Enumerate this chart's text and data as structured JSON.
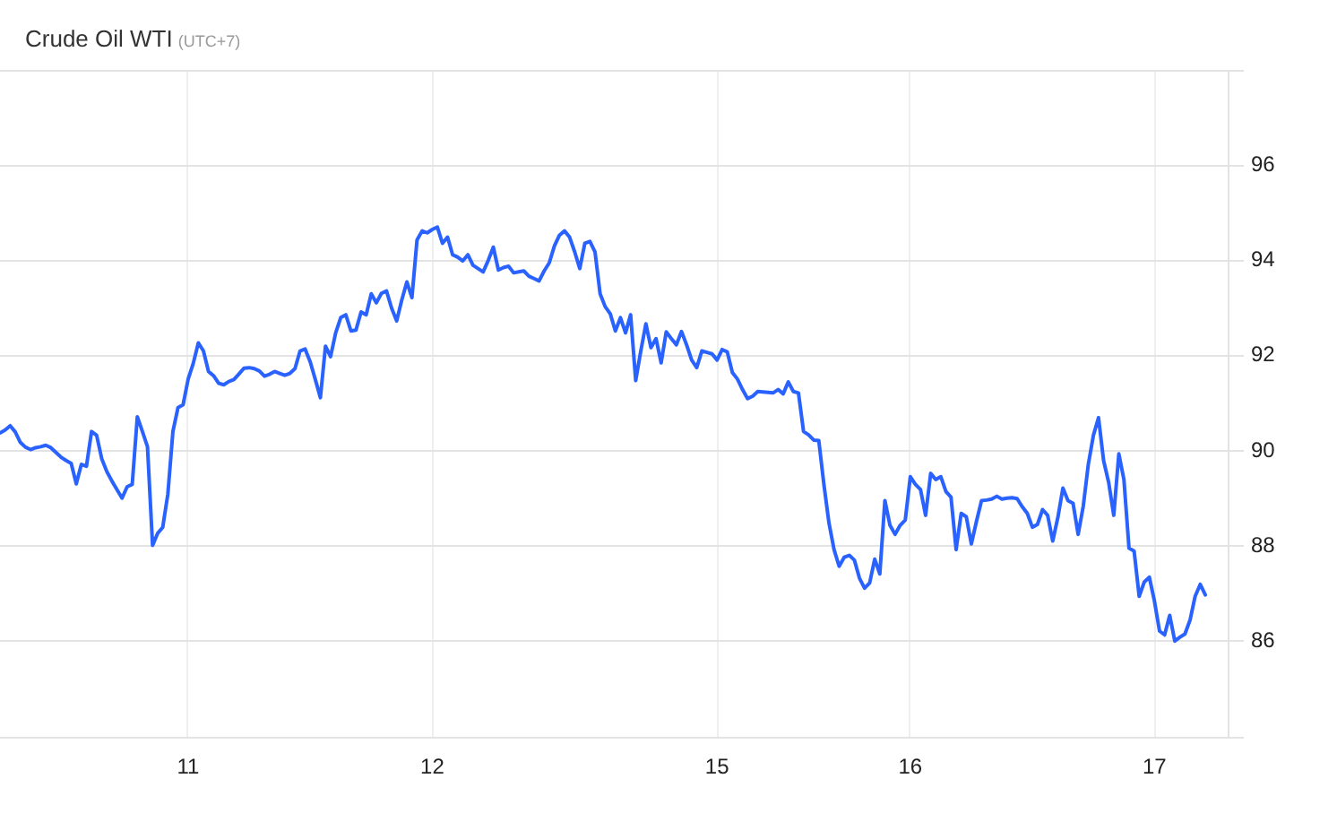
{
  "chart_data": {
    "type": "line",
    "title": "Crude Oil WTI",
    "subtitle": "(UTC+7)",
    "categories": [
      null,
      null,
      null,
      null,
      null,
      null,
      null,
      null,
      null,
      null,
      null,
      null,
      null,
      null,
      null,
      null,
      null,
      null,
      null,
      null,
      null,
      null,
      null,
      null,
      null,
      null,
      null,
      null,
      null,
      null,
      null,
      null,
      null,
      null,
      null,
      null,
      null,
      "11",
      null,
      null,
      null,
      null,
      null,
      null,
      null,
      null,
      null,
      null,
      null,
      null,
      null,
      null,
      null,
      null,
      null,
      null,
      null,
      null,
      null,
      null,
      null,
      null,
      null,
      null,
      null,
      null,
      null,
      null,
      null,
      null,
      null,
      null,
      null,
      null,
      null,
      null,
      null,
      null,
      null,
      null,
      null,
      null,
      null,
      null,
      null,
      "12",
      null,
      null,
      null,
      null,
      null,
      null,
      null,
      null,
      null,
      null,
      null,
      null,
      null,
      null,
      null,
      null,
      null,
      null,
      null,
      null,
      null,
      null,
      null,
      null,
      null,
      null,
      null,
      null,
      null,
      null,
      null,
      null,
      null,
      null,
      null,
      null,
      null,
      null,
      null,
      null,
      null,
      null,
      null,
      null,
      null,
      null,
      null,
      null,
      null,
      null,
      null,
      null,
      null,
      null,
      null,
      "15",
      null,
      null,
      null,
      null,
      null,
      null,
      null,
      null,
      null,
      null,
      null,
      null,
      null,
      null,
      null,
      null,
      null,
      null,
      null,
      null,
      null,
      null,
      null,
      null,
      null,
      null,
      null,
      null,
      null,
      null,
      null,
      null,
      null,
      null,
      null,
      null,
      null,
      "16",
      null,
      null,
      null,
      null,
      null,
      null,
      null,
      null,
      null,
      null,
      null,
      null,
      null,
      null,
      null,
      null,
      null,
      null,
      null,
      null,
      null,
      null,
      null,
      null,
      null,
      null,
      null,
      null,
      null,
      null,
      null,
      null,
      null,
      null,
      null,
      null,
      null,
      null,
      null,
      null,
      null,
      null,
      null,
      null,
      null,
      null,
      null,
      "17",
      null,
      null,
      null,
      null,
      null,
      null,
      null,
      null,
      null,
      null
    ],
    "values": [
      90.38,
      90.44,
      90.53,
      90.4,
      90.18,
      90.08,
      90.03,
      90.07,
      90.09,
      90.12,
      90.07,
      89.97,
      89.87,
      89.8,
      89.74,
      89.31,
      89.72,
      89.68,
      90.41,
      90.33,
      89.84,
      89.57,
      89.37,
      89.19,
      89.01,
      89.25,
      89.3,
      90.72,
      90.41,
      90.09,
      88.02,
      88.27,
      88.4,
      89.09,
      90.41,
      90.91,
      90.97,
      91.51,
      91.84,
      92.27,
      92.1,
      91.67,
      91.58,
      91.42,
      91.39,
      91.46,
      91.5,
      91.62,
      91.74,
      91.75,
      91.73,
      91.68,
      91.57,
      91.61,
      91.67,
      91.63,
      91.59,
      91.63,
      91.73,
      92.1,
      92.14,
      91.87,
      91.5,
      91.12,
      92.2,
      91.98,
      92.48,
      92.8,
      92.86,
      92.52,
      92.54,
      92.92,
      92.86,
      93.3,
      93.11,
      93.31,
      93.36,
      93.0,
      92.73,
      93.17,
      93.55,
      93.22,
      94.43,
      94.62,
      94.58,
      94.65,
      94.7,
      94.36,
      94.49,
      94.12,
      94.07,
      93.99,
      94.12,
      93.9,
      93.83,
      93.76,
      94.0,
      94.28,
      93.8,
      93.85,
      93.88,
      93.74,
      93.76,
      93.78,
      93.67,
      93.62,
      93.57,
      93.78,
      93.95,
      94.3,
      94.53,
      94.62,
      94.49,
      94.18,
      93.83,
      94.36,
      94.4,
      94.18,
      93.3,
      93.03,
      92.88,
      92.52,
      92.8,
      92.48,
      92.86,
      91.48,
      92.1,
      92.67,
      92.17,
      92.36,
      91.85,
      92.5,
      92.36,
      92.23,
      92.51,
      92.23,
      91.91,
      91.75,
      92.1,
      92.07,
      92.04,
      91.91,
      92.13,
      92.08,
      91.65,
      91.51,
      91.29,
      91.1,
      91.15,
      91.25,
      91.24,
      91.23,
      91.22,
      91.29,
      91.2,
      91.45,
      91.25,
      91.22,
      90.41,
      90.34,
      90.23,
      90.22,
      89.3,
      88.49,
      87.93,
      87.58,
      87.77,
      87.81,
      87.71,
      87.33,
      87.12,
      87.23,
      87.73,
      87.42,
      88.96,
      88.44,
      88.25,
      88.44,
      88.55,
      89.46,
      89.3,
      89.19,
      88.65,
      89.53,
      89.4,
      89.46,
      89.15,
      89.03,
      87.93,
      88.69,
      88.62,
      88.05,
      88.52,
      88.96,
      88.97,
      88.99,
      89.05,
      88.99,
      89.01,
      89.02,
      89.0,
      88.83,
      88.69,
      88.4,
      88.46,
      88.77,
      88.65,
      88.11,
      88.6,
      89.22,
      88.96,
      88.9,
      88.25,
      88.84,
      89.72,
      90.33,
      90.7,
      89.8,
      89.34,
      88.65,
      89.94,
      89.4,
      87.96,
      87.9,
      86.95,
      87.25,
      87.35,
      86.85,
      86.22,
      86.14,
      86.55,
      86.01,
      86.09,
      86.16,
      86.45,
      86.95,
      87.2,
      86.98
    ],
    "color": "#2962ff",
    "ylim": [
      84,
      98
    ],
    "yticks": [
      {
        "value": 84,
        "label": null
      },
      86,
      88,
      90,
      92,
      94,
      96,
      {
        "value": 98,
        "label": null
      }
    ],
    "grid": true,
    "legend": false,
    "marker": "none",
    "line_style": "solid"
  }
}
